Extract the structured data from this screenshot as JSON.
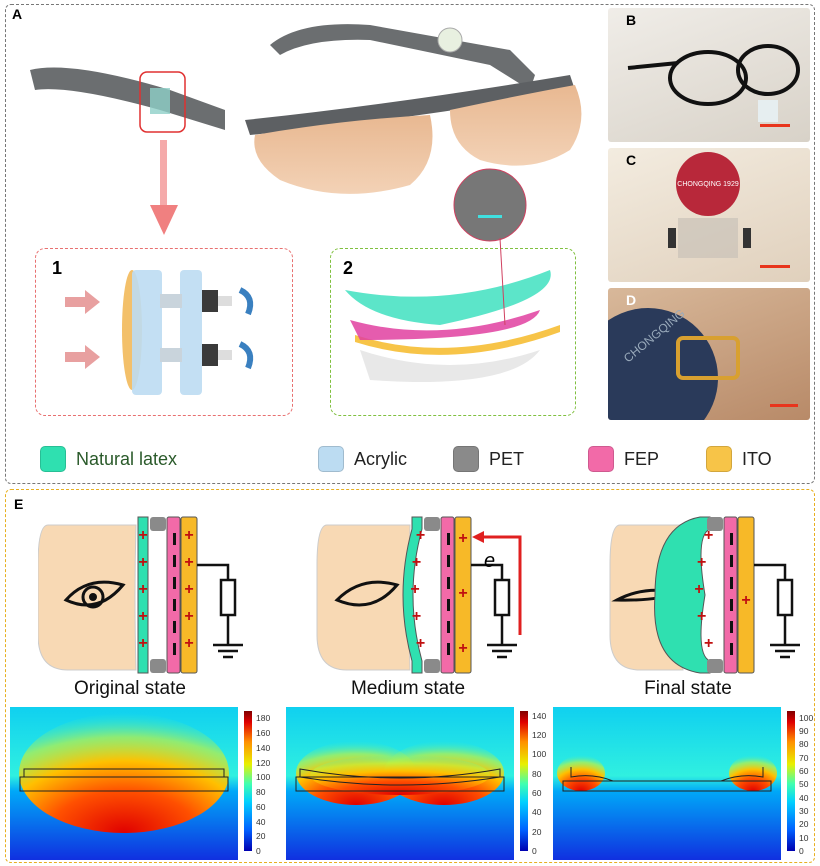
{
  "panels": {
    "a": "A",
    "b": "B",
    "c": "C",
    "d": "D",
    "e": "E",
    "sub1": "1",
    "sub2": "2"
  },
  "legend": [
    {
      "label": "Natural latex",
      "color": "#2fe0b0"
    },
    {
      "label": "Acrylic",
      "color": "#bcdcf2"
    },
    {
      "label": "PET",
      "color": "#8a8a8a"
    },
    {
      "label": "FEP",
      "color": "#f26aa8"
    },
    {
      "label": "ITO",
      "color": "#f7c448"
    }
  ],
  "states": [
    {
      "title": "Original state",
      "colorbar_ticks": [
        "180",
        "160",
        "140",
        "120",
        "100",
        "80",
        "60",
        "40",
        "20",
        "0"
      ],
      "max": 190
    },
    {
      "title": "Medium state",
      "colorbar_ticks": [
        "140",
        "120",
        "100",
        "80",
        "60",
        "40",
        "20",
        "0"
      ],
      "max": 145
    },
    {
      "title": "Final state",
      "colorbar_ticks": [
        "100",
        "90",
        "80",
        "70",
        "60",
        "50",
        "40",
        "30",
        "20",
        "10",
        "0"
      ],
      "max": 105
    }
  ],
  "circuit": {
    "electron_label": "e",
    "plus": "+",
    "minus": "−"
  },
  "photo_c_seal_text": "CHONGQING 1929",
  "photo_d_text": "CHONGQING",
  "colors": {
    "latex": "#2fe0b0",
    "fep": "#f26aa8",
    "ito": "#f7b928",
    "pet": "#8a8a8a",
    "skin": "#f8d9b4",
    "arrow": "#e02020",
    "box_a": "#777777",
    "box_e": "#e8b020",
    "box1": "#e87070",
    "box2": "#80c040",
    "scalebar": "#e8351c"
  }
}
